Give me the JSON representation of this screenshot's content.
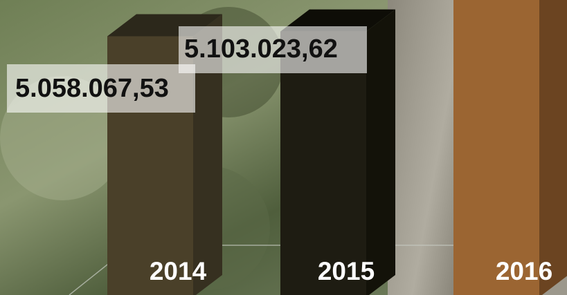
{
  "chart_data": {
    "type": "bar3d",
    "categories": [
      "2014",
      "2015",
      "2016"
    ],
    "values": [
      5058067.53,
      5103023.62,
      5500000
    ],
    "value_labels": [
      "5.058.067,53",
      "5.103.023,62",
      null
    ],
    "series_colors": [
      {
        "front": "#4a4029",
        "side": "#363020",
        "top": "#2c281b"
      },
      {
        "front": "#1e1c12",
        "side": "#131209",
        "top": "#0e0d07"
      },
      {
        "front": "#9b6532",
        "side": "#6b4421",
        "top": "#7a4e27"
      }
    ],
    "ylim": [
      2600000,
      5400000
    ]
  }
}
